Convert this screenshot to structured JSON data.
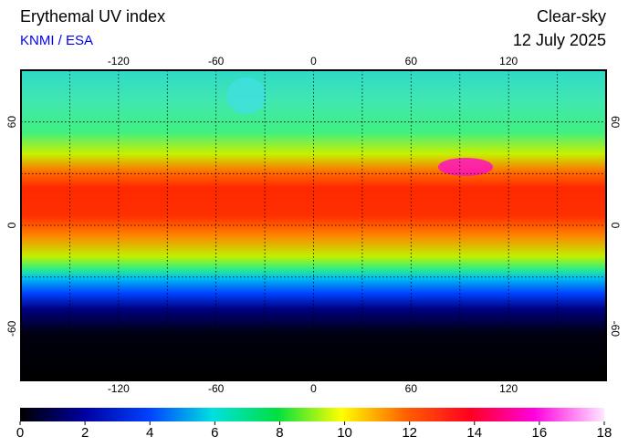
{
  "header": {
    "title": "Erythemal UV index",
    "source": "KNMI / ESA",
    "condition": "Clear-sky",
    "date": "12 July 2025"
  },
  "map": {
    "lon_range": [
      -180,
      180
    ],
    "lat_range": [
      -90,
      90
    ],
    "lon_ticks": [
      -120,
      -60,
      0,
      60,
      120
    ],
    "lat_ticks": [
      60,
      0,
      -60
    ]
  },
  "colorbar": {
    "range": [
      0,
      18
    ],
    "ticks": [
      0,
      2,
      4,
      6,
      8,
      10,
      12,
      14,
      16,
      18
    ]
  }
}
